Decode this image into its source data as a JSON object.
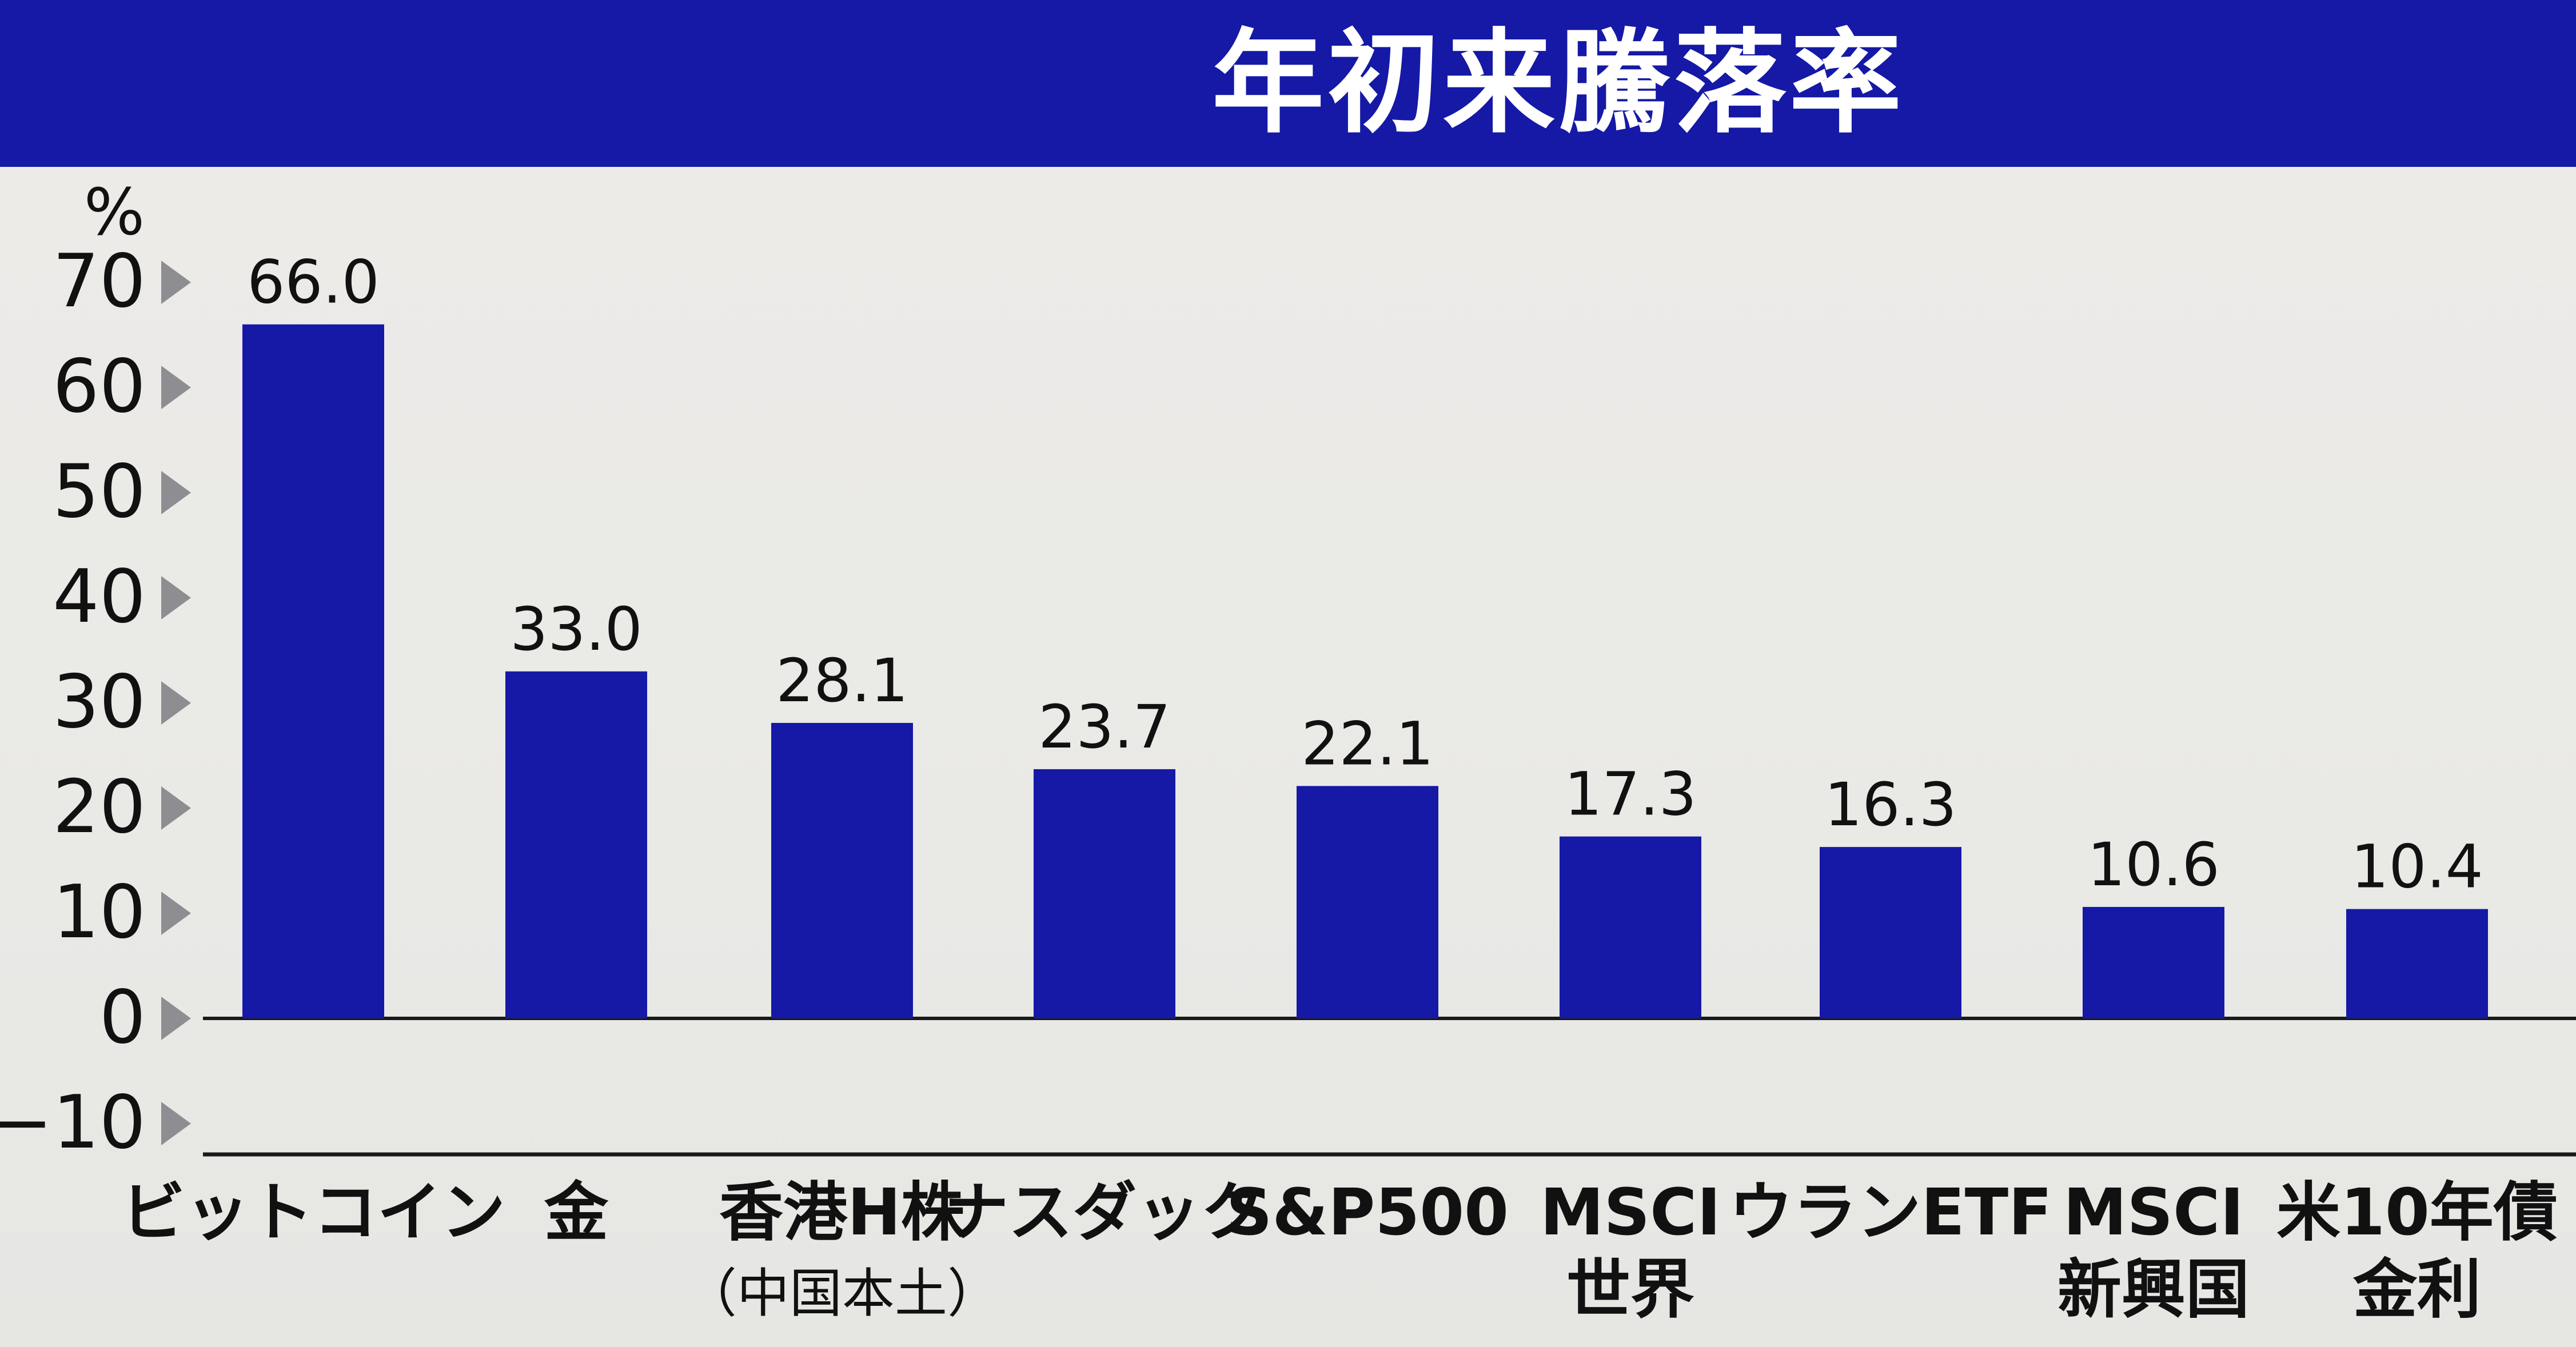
{
  "title": "年初来騰落率",
  "colors": {
    "header_bg": "#1519a6",
    "bar": "#1519a6",
    "background": "#e9e9e6",
    "text": "#111111",
    "tick_marker": "#8e8e92"
  },
  "chart_data": {
    "type": "bar",
    "title": "年初来騰落率",
    "ylabel": "%",
    "ylim": [
      -10,
      70
    ],
    "yticks": [
      70,
      60,
      50,
      40,
      30,
      20,
      10,
      0,
      -10
    ],
    "ytick_labels": [
      "70",
      "60",
      "50",
      "40",
      "30",
      "20",
      "10",
      "0",
      "−10"
    ],
    "categories": [
      {
        "lines": [
          "ビットコイン"
        ]
      },
      {
        "lines": [
          "金"
        ]
      },
      {
        "lines": [
          "香港H株",
          "（中国本土）"
        ]
      },
      {
        "lines": [
          "ナスダック"
        ]
      },
      {
        "lines": [
          "S&P500"
        ]
      },
      {
        "lines": [
          "MSCI",
          "世界"
        ]
      },
      {
        "lines": [
          "ウランETF"
        ]
      },
      {
        "lines": [
          "MSCI",
          "新興国"
        ]
      },
      {
        "lines": [
          "米10年債",
          "金利"
        ]
      }
    ],
    "values": [
      66.0,
      33.0,
      28.1,
      23.7,
      22.1,
      17.3,
      16.3,
      10.6,
      10.4
    ],
    "value_labels": [
      "66.0",
      "33.0",
      "28.1",
      "23.7",
      "22.1",
      "17.3",
      "16.3",
      "10.6",
      "10.4"
    ],
    "grid": false,
    "legend": "none"
  }
}
